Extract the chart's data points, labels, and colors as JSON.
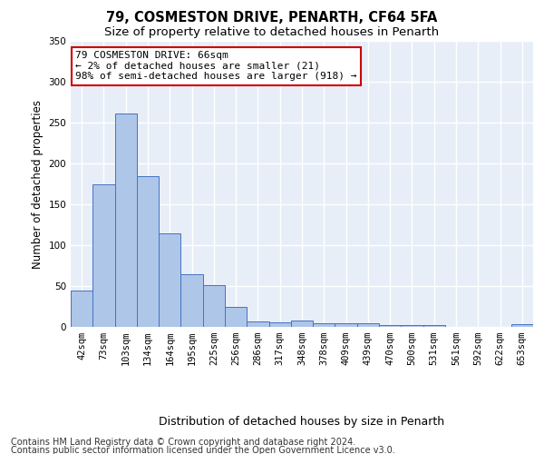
{
  "title": "79, COSMESTON DRIVE, PENARTH, CF64 5FA",
  "subtitle": "Size of property relative to detached houses in Penarth",
  "xlabel": "Distribution of detached houses by size in Penarth",
  "ylabel": "Number of detached properties",
  "categories": [
    "42sqm",
    "73sqm",
    "103sqm",
    "134sqm",
    "164sqm",
    "195sqm",
    "225sqm",
    "256sqm",
    "286sqm",
    "317sqm",
    "348sqm",
    "378sqm",
    "409sqm",
    "439sqm",
    "470sqm",
    "500sqm",
    "531sqm",
    "561sqm",
    "592sqm",
    "622sqm",
    "653sqm"
  ],
  "values": [
    44,
    175,
    261,
    184,
    114,
    65,
    51,
    25,
    7,
    6,
    8,
    5,
    4,
    4,
    2,
    2,
    2,
    0,
    0,
    0,
    3
  ],
  "bar_color": "#aec6e8",
  "bar_edge_color": "#4472c4",
  "background_color": "#e8eef8",
  "grid_color": "#ffffff",
  "fig_background_color": "#ffffff",
  "ylim": [
    0,
    350
  ],
  "yticks": [
    0,
    50,
    100,
    150,
    200,
    250,
    300,
    350
  ],
  "annotation_text": "79 COSMESTON DRIVE: 66sqm\n← 2% of detached houses are smaller (21)\n98% of semi-detached houses are larger (918) →",
  "annotation_box_color": "#ffffff",
  "annotation_border_color": "#cc0000",
  "footer_line1": "Contains HM Land Registry data © Crown copyright and database right 2024.",
  "footer_line2": "Contains public sector information licensed under the Open Government Licence v3.0.",
  "title_fontsize": 10.5,
  "subtitle_fontsize": 9.5,
  "ylabel_fontsize": 8.5,
  "xlabel_fontsize": 9,
  "tick_fontsize": 7.5,
  "annotation_fontsize": 8,
  "footer_fontsize": 7
}
